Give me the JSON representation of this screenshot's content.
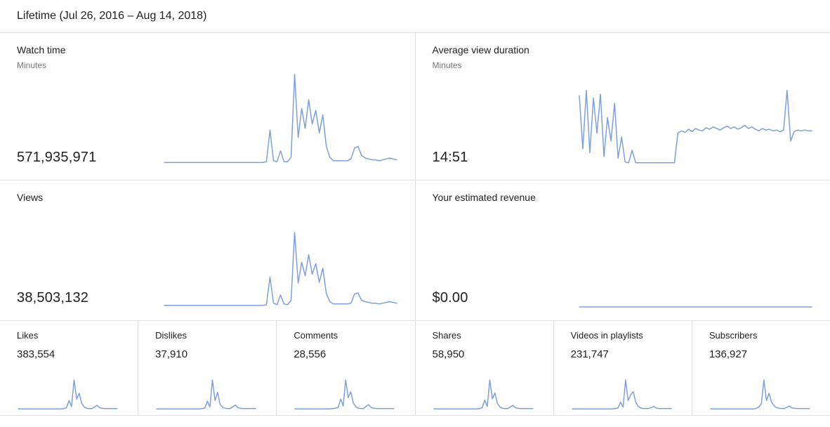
{
  "header": {
    "title": "Lifetime (Jul 26, 2016 – Aug 14, 2018)"
  },
  "colors": {
    "spark": "#7da0dd",
    "divider": "#e0e0e0",
    "text": "#212121",
    "muted": "#757575"
  },
  "cards": {
    "watch_time": {
      "title": "Watch time",
      "subtitle": "Minutes",
      "value": "571,935,971",
      "spark": [
        2,
        2,
        2,
        2,
        2,
        2,
        2,
        2,
        2,
        2,
        2,
        2,
        2,
        2,
        2,
        2,
        2,
        2,
        2,
        2,
        2,
        2,
        2,
        2,
        2,
        2,
        2,
        2,
        2,
        3,
        38,
        4,
        3,
        15,
        3,
        3,
        8,
        100,
        30,
        62,
        40,
        72,
        45,
        60,
        35,
        55,
        20,
        8,
        4,
        4,
        4,
        4,
        4,
        6,
        18,
        20,
        10,
        7,
        6,
        5,
        5,
        4,
        5,
        6,
        7,
        6,
        5
      ]
    },
    "avg_view_duration": {
      "title": "Average view duration",
      "subtitle": "Minutes",
      "value": "14:51",
      "spark": [
        88,
        20,
        95,
        15,
        85,
        40,
        90,
        10,
        60,
        30,
        78,
        8,
        35,
        3,
        2,
        18,
        2,
        2,
        2,
        2,
        2,
        2,
        2,
        2,
        2,
        2,
        2,
        2,
        40,
        43,
        41,
        45,
        42,
        46,
        44,
        43,
        47,
        45,
        48,
        46,
        44,
        47,
        49,
        46,
        48,
        45,
        47,
        50,
        46,
        48,
        45,
        43,
        46,
        44,
        45,
        43,
        44,
        42,
        44,
        95,
        30,
        42,
        44,
        43,
        44,
        43,
        43
      ]
    },
    "views": {
      "title": "Views",
      "value": "38,503,132",
      "spark": [
        2,
        2,
        2,
        2,
        2,
        2,
        2,
        2,
        2,
        2,
        2,
        2,
        2,
        2,
        2,
        2,
        2,
        2,
        2,
        2,
        2,
        2,
        2,
        2,
        2,
        2,
        2,
        2,
        2,
        3,
        40,
        5,
        3,
        16,
        4,
        3,
        9,
        100,
        32,
        60,
        42,
        70,
        44,
        58,
        33,
        52,
        18,
        7,
        4,
        4,
        4,
        4,
        4,
        5,
        17,
        19,
        9,
        7,
        6,
        5,
        5,
        4,
        5,
        6,
        7,
        6,
        5
      ]
    },
    "revenue": {
      "title": "Your estimated revenue",
      "value": "$0.00",
      "spark": [
        0,
        0,
        0,
        0,
        0,
        0,
        0,
        0,
        0,
        0
      ]
    },
    "small": [
      {
        "title": "Likes",
        "value": "383,554",
        "spark": [
          2,
          2,
          2,
          2,
          2,
          2,
          2,
          2,
          2,
          2,
          2,
          2,
          2,
          2,
          2,
          2,
          2,
          2,
          3,
          6,
          30,
          10,
          100,
          35,
          55,
          20,
          8,
          4,
          3,
          3,
          8,
          14,
          6,
          4,
          3,
          3,
          3,
          3,
          3,
          3
        ]
      },
      {
        "title": "Dislikes",
        "value": "37,910",
        "spark": [
          2,
          2,
          2,
          2,
          2,
          2,
          2,
          2,
          2,
          2,
          2,
          2,
          2,
          2,
          2,
          2,
          2,
          2,
          3,
          5,
          28,
          8,
          100,
          30,
          58,
          18,
          7,
          4,
          3,
          3,
          9,
          15,
          6,
          4,
          3,
          3,
          3,
          3,
          3,
          3
        ]
      },
      {
        "title": "Comments",
        "value": "28,556",
        "spark": [
          2,
          2,
          2,
          2,
          2,
          2,
          2,
          2,
          2,
          2,
          2,
          2,
          2,
          2,
          2,
          3,
          4,
          7,
          35,
          12,
          100,
          40,
          60,
          22,
          9,
          4,
          3,
          3,
          10,
          16,
          7,
          4,
          3,
          3,
          3,
          3,
          3,
          3,
          3,
          3
        ]
      },
      {
        "title": "Shares",
        "value": "58,950",
        "spark": [
          2,
          2,
          2,
          2,
          2,
          2,
          2,
          2,
          2,
          2,
          2,
          2,
          2,
          2,
          2,
          2,
          2,
          2,
          3,
          6,
          32,
          10,
          100,
          36,
          56,
          20,
          8,
          4,
          3,
          3,
          8,
          14,
          6,
          4,
          3,
          3,
          3,
          3,
          3,
          3
        ]
      },
      {
        "title": "Videos in playlists",
        "value": "231,747",
        "spark": [
          2,
          2,
          2,
          2,
          2,
          2,
          2,
          2,
          2,
          2,
          2,
          2,
          2,
          2,
          2,
          2,
          2,
          3,
          5,
          25,
          8,
          100,
          30,
          50,
          60,
          25,
          10,
          5,
          3,
          3,
          3,
          6,
          10,
          5,
          3,
          3,
          3,
          3,
          3,
          3
        ]
      },
      {
        "title": "Subscribers",
        "value": "136,927",
        "spark": [
          2,
          2,
          2,
          2,
          2,
          2,
          2,
          2,
          2,
          2,
          2,
          2,
          2,
          2,
          2,
          2,
          2,
          2,
          4,
          8,
          20,
          100,
          30,
          55,
          25,
          12,
          6,
          4,
          3,
          3,
          7,
          12,
          5,
          4,
          3,
          3,
          3,
          3,
          3,
          3
        ]
      }
    ]
  }
}
